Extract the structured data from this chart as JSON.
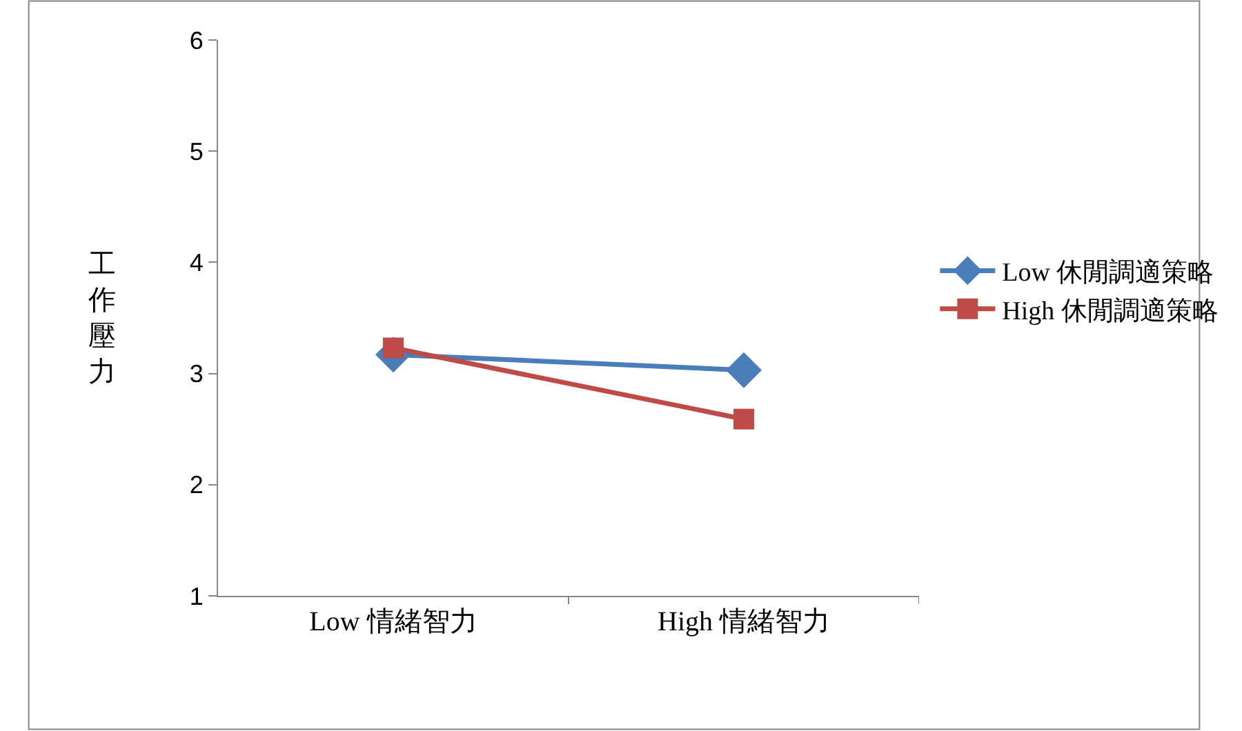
{
  "chart_data": {
    "type": "line",
    "ylabel": "工作壓力",
    "categories": [
      "Low 情緒智力",
      "High 情緒智力"
    ],
    "series": [
      {
        "name": "Low 休閒調適策略",
        "color": "#4a7ebb",
        "marker": "diamond",
        "values": [
          3.17,
          3.03
        ]
      },
      {
        "name": "High 休閒調適策略",
        "color": "#be4b48",
        "marker": "square",
        "values": [
          3.23,
          2.59
        ]
      }
    ],
    "ylim": [
      1,
      6
    ],
    "yticks": [
      1,
      2,
      3,
      4,
      5,
      6
    ],
    "legend": "right"
  }
}
